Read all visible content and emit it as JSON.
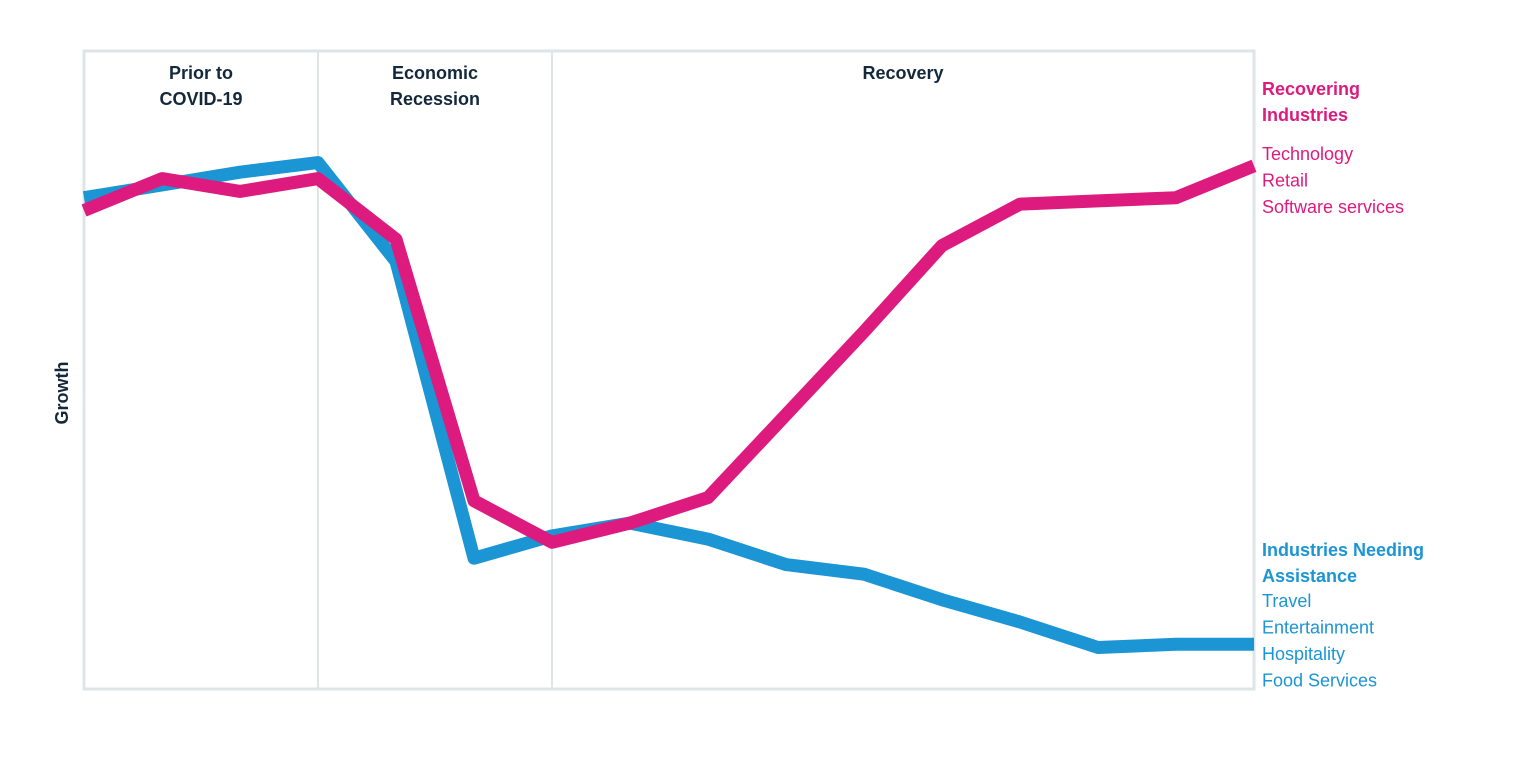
{
  "chart_data": {
    "type": "line",
    "ylabel": "Growth",
    "xlabel": "",
    "title": "",
    "grid": false,
    "x_range": [
      0,
      15
    ],
    "y_range": [
      0,
      100
    ],
    "phases": [
      {
        "lines": [
          "Prior to",
          "COVID-19"
        ],
        "start": 0,
        "end": 3
      },
      {
        "lines": [
          "Economic",
          "Recession"
        ],
        "start": 3,
        "end": 6
      },
      {
        "lines": [
          "Recovery"
        ],
        "start": 6,
        "end": 15
      }
    ],
    "series": [
      {
        "name": "Industries Needing Assistance",
        "color": "#1b95d3",
        "x": [
          0,
          1,
          2,
          3,
          4,
          5,
          6,
          7,
          8,
          9,
          10,
          11,
          12,
          13,
          14,
          15
        ],
        "y": [
          77,
          79,
          81,
          82.5,
          67,
          20.5,
          24,
          26,
          23.5,
          19.5,
          18,
          14,
          10.5,
          6.5,
          7,
          7
        ]
      },
      {
        "name": "Recovering Industries",
        "color": "#dd1b7f",
        "x": [
          0,
          1,
          2,
          3,
          4,
          5,
          6,
          7,
          8,
          9,
          10,
          11,
          12,
          13,
          14,
          15
        ],
        "y": [
          75,
          80,
          78,
          80,
          70.5,
          29.5,
          23,
          26,
          30,
          43,
          56,
          69.5,
          76,
          76.5,
          77,
          82
        ]
      }
    ],
    "legend": {
      "placement": "right",
      "groups": [
        {
          "title_lines": [
            "Recovering",
            "Industries"
          ],
          "color": "#dd1b7f",
          "items": [
            "Technology",
            "Retail",
            "Software services"
          ]
        },
        {
          "title_lines": [
            "Industries Needing",
            "Assistance"
          ],
          "color": "#1b95d3",
          "items": [
            "Travel",
            "Entertainment",
            "Hospitality",
            "Food Services"
          ]
        }
      ]
    }
  }
}
